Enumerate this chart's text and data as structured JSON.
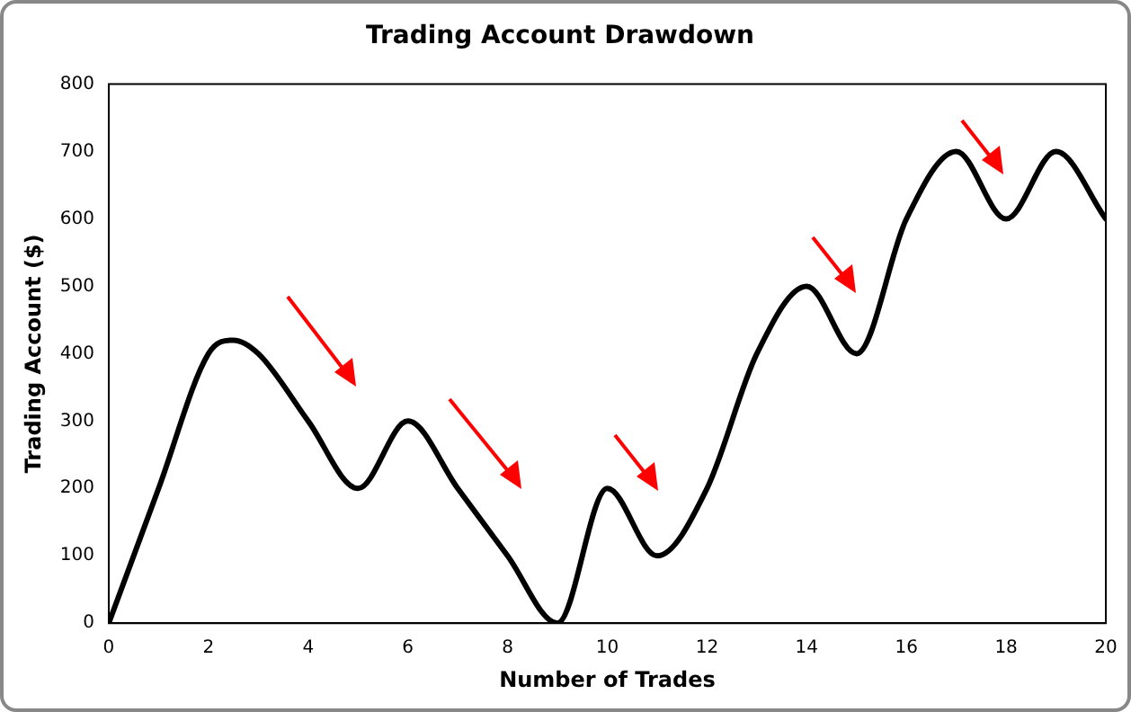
{
  "chart_data": {
    "type": "line",
    "title": "Trading Account Drawdown",
    "xlabel": "Number of Trades",
    "ylabel": "Trading Account ($)",
    "x": [
      0,
      1,
      2,
      2.5,
      3,
      4,
      5,
      6,
      7,
      8,
      9,
      10,
      11,
      12,
      13,
      14,
      15,
      16,
      17,
      18,
      19,
      20
    ],
    "series": [
      {
        "color": "#000000",
        "values": [
          0,
          200,
          400,
          420,
          400,
          300,
          200,
          300,
          200,
          100,
          0,
          200,
          100,
          200,
          400,
          500,
          400,
          600,
          700,
          600,
          700,
          600
        ]
      }
    ],
    "xlim": [
      0,
      20
    ],
    "xticks": [
      0,
      2,
      4,
      6,
      8,
      10,
      12,
      14,
      16,
      18,
      20
    ],
    "ylim": [
      0,
      800
    ],
    "yticks": [
      0,
      100,
      200,
      300,
      400,
      500,
      600,
      700,
      800
    ],
    "grid": false,
    "legend": false,
    "marker": "none",
    "line_style": "solid"
  }
}
